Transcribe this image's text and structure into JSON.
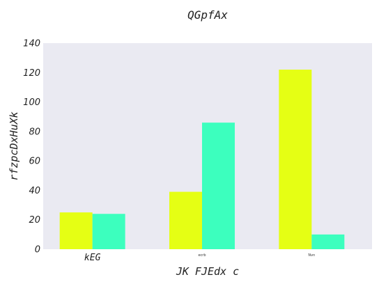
{
  "chart_data": {
    "type": "bar",
    "title": "QGpfAx",
    "xlabel": "JK FJEdx c",
    "ylabel": "rfzpcDxHuXk",
    "categories": [
      "kEG",
      "ecrb",
      "Nvn"
    ],
    "series": [
      {
        "values": [
          25,
          39,
          122
        ],
        "color": "#e5ff14"
      },
      {
        "values": [
          24,
          86,
          10
        ],
        "color": "#3cffbe"
      }
    ],
    "ylim": [
      0,
      140
    ],
    "yticks": [
      "0",
      "20",
      "40",
      "60",
      "80",
      "100",
      "120",
      "140"
    ],
    "grid": false,
    "legend": "none",
    "background_color": "#eaeaf2"
  }
}
